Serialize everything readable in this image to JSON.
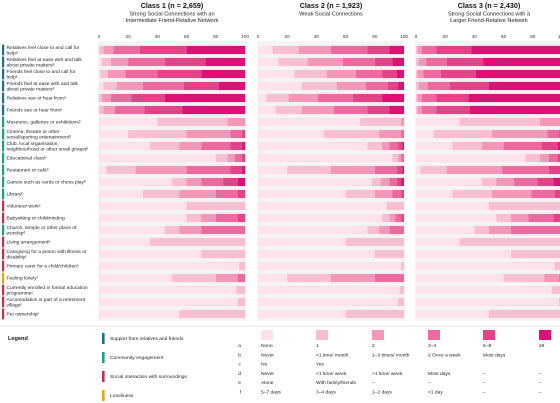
{
  "chart_data": {
    "type": "bar",
    "stacked": true,
    "orientation": "horizontal",
    "xlim": [
      0,
      100
    ],
    "xticks": [
      "0",
      "20",
      "40",
      "60",
      "80",
      "100"
    ],
    "categories": [
      {
        "label": "Relatives feel close to and call for helpᵃ",
        "group": "Support from relatives and friends",
        "scale": "a"
      },
      {
        "label": "Relatives feel at ease with and talk about private mattersᵃ",
        "group": "Support from relatives and friends",
        "scale": "a"
      },
      {
        "label": "Friends feel close to and call for helpᵃ",
        "group": "Support from relatives and friends",
        "scale": "a"
      },
      {
        "label": "Friends feel at ease with and talk about private mattersᵃ",
        "group": "Support from relatives and friends",
        "scale": "a"
      },
      {
        "label": "Relatives see or hear fromᵃ",
        "group": "Support from relatives and friends",
        "scale": "a"
      },
      {
        "label": "Friends see or hear fromᵃ",
        "group": "Support from relatives and friends",
        "scale": "a"
      },
      {
        "label": "Museums, galleries or exhibitionsᵇ",
        "group": "Community engagement",
        "scale": "b"
      },
      {
        "label": "Cinema, theatre or other social/sporting entertainmentᵇ",
        "group": "Community engagement",
        "scale": "b"
      },
      {
        "label": "Club, local organisation, neighbourhood or other small groupsᵇ",
        "group": "Community engagement",
        "scale": "b"
      },
      {
        "label": "Educational classᵇ",
        "group": "Community engagement",
        "scale": "b"
      },
      {
        "label": "Restaurant or caféᵇ",
        "group": "Community engagement",
        "scale": "b"
      },
      {
        "label": "Games such as cards or chess playᵇ",
        "group": "Community engagement",
        "scale": "b"
      },
      {
        "label": "Libraryᵇ",
        "group": "Community engagement",
        "scale": "b"
      },
      {
        "label": "Volunteer workᶜ",
        "group": "Social interaction with surroundings",
        "scale": "c"
      },
      {
        "label": "Babysitting or childminding",
        "group": "Social interaction with surroundings",
        "scale": "d"
      },
      {
        "label": "Church, temple or other place of worshipᵈ",
        "group": "Community engagement",
        "scale": "d"
      },
      {
        "label": "Living arrangementᵉ",
        "group": "Social interaction with surroundings",
        "scale": "e"
      },
      {
        "label": "Caregiving for a peson with illness or disabilityᶜ",
        "group": "Social interaction with surroundings",
        "scale": "c"
      },
      {
        "label": "Primary carer for a child/childrenᶜ",
        "group": "Social interaction with surroundings",
        "scale": "c"
      },
      {
        "label": "Feeling lonelyᶠ",
        "group": "Loneliness",
        "scale": "f"
      },
      {
        "label": "Currently enrolled in formal education programmeᶜ",
        "group": "Social interaction with surroundings",
        "scale": "c"
      },
      {
        "label": "Accomodation is part of a retirement villageᶜ",
        "group": "Social interaction with surroundings",
        "scale": "c"
      },
      {
        "label": "Pet ownershipᶜ",
        "group": "Social interaction with surroundings",
        "scale": "c"
      }
    ],
    "panels": [
      {
        "title": "Class 1 (n = 2,659)",
        "subtitle_lines": [
          "Strong Social Connections with an",
          "Intermediate Friend-Relative Network"
        ],
        "rows": [
          [
            0,
            3,
            7,
            18,
            32,
            40
          ],
          [
            2,
            6,
            12,
            25,
            28,
            27
          ],
          [
            1,
            5,
            12,
            22,
            30,
            30
          ],
          [
            3,
            9,
            18,
            28,
            24,
            18
          ],
          [
            0,
            2,
            6,
            14,
            23,
            55
          ],
          [
            0,
            3,
            8,
            20,
            26,
            43
          ],
          [
            40,
            48,
            12,
            0,
            0,
            0
          ],
          [
            20,
            40,
            30,
            8,
            2,
            0
          ],
          [
            35,
            20,
            15,
            20,
            8,
            2
          ],
          [
            80,
            8,
            5,
            5,
            2,
            0
          ],
          [
            5,
            20,
            35,
            30,
            8,
            2
          ],
          [
            50,
            10,
            10,
            15,
            10,
            5
          ],
          [
            30,
            25,
            25,
            15,
            5,
            0
          ],
          [
            60,
            40
          ],
          [
            60,
            10,
            10,
            15,
            5
          ],
          [
            45,
            10,
            15,
            30
          ],
          [
            35,
            65
          ],
          [
            70,
            30
          ],
          [
            96,
            4
          ],
          [
            50,
            30,
            15,
            5
          ],
          [
            94,
            6
          ],
          [
            95,
            5
          ],
          [
            55,
            45
          ]
        ]
      },
      {
        "title": "Class 2 (n = 1,923)",
        "subtitle_lines": [
          "Weak Social Connections"
        ],
        "rows": [
          [
            10,
            18,
            22,
            25,
            15,
            10
          ],
          [
            14,
            20,
            24,
            22,
            12,
            8
          ],
          [
            25,
            22,
            20,
            18,
            10,
            5
          ],
          [
            30,
            24,
            20,
            15,
            7,
            4
          ],
          [
            6,
            15,
            20,
            24,
            20,
            15
          ],
          [
            12,
            18,
            22,
            23,
            15,
            10
          ],
          [
            70,
            28,
            2,
            0,
            0,
            0
          ],
          [
            45,
            38,
            15,
            2,
            0,
            0
          ],
          [
            75,
            10,
            5,
            6,
            3,
            1
          ],
          [
            92,
            4,
            2,
            2,
            0,
            0
          ],
          [
            20,
            30,
            30,
            15,
            4,
            1
          ],
          [
            78,
            6,
            6,
            5,
            3,
            2
          ],
          [
            60,
            20,
            12,
            6,
            2,
            0
          ],
          [
            88,
            12
          ],
          [
            85,
            5,
            4,
            4,
            2
          ],
          [
            75,
            8,
            7,
            10
          ],
          [
            60,
            40
          ],
          [
            80,
            20
          ],
          [
            98,
            2
          ],
          [
            20,
            30,
            30,
            20
          ],
          [
            97,
            3
          ],
          [
            96,
            4
          ],
          [
            60,
            40
          ]
        ]
      },
      {
        "title": "Class 3 (n = 2,430)",
        "subtitle_lines": [
          "Strong Social Connections with a",
          "Larger Friend-Relative Network"
        ],
        "rows": [
          [
            0,
            1,
            3,
            10,
            24,
            62
          ],
          [
            0,
            2,
            5,
            14,
            25,
            54
          ],
          [
            0,
            1,
            4,
            12,
            24,
            59
          ],
          [
            0,
            2,
            6,
            15,
            27,
            50
          ],
          [
            0,
            1,
            3,
            10,
            22,
            64
          ],
          [
            0,
            1,
            3,
            10,
            23,
            63
          ],
          [
            30,
            55,
            15,
            0,
            0,
            0
          ],
          [
            12,
            40,
            38,
            8,
            2,
            0
          ],
          [
            25,
            20,
            15,
            26,
            11,
            3
          ],
          [
            75,
            10,
            6,
            6,
            3,
            0
          ],
          [
            3,
            18,
            38,
            32,
            8,
            1
          ],
          [
            45,
            10,
            12,
            16,
            11,
            6
          ],
          [
            25,
            27,
            27,
            16,
            5,
            0
          ],
          [
            50,
            50
          ],
          [
            55,
            10,
            12,
            17,
            6
          ],
          [
            40,
            10,
            15,
            35
          ],
          [
            30,
            70
          ],
          [
            65,
            35
          ],
          [
            95,
            5
          ],
          [
            60,
            28,
            10,
            2
          ],
          [
            93,
            7
          ],
          [
            98,
            2
          ],
          [
            50,
            50
          ]
        ]
      }
    ],
    "legend": {
      "title": "Legend",
      "groups": [
        {
          "label": "Support from relatives and friends",
          "color": "#1a6f8a"
        },
        {
          "label": "Community engagement",
          "color": "#1f9b8a"
        },
        {
          "label": "Social interaction with surroundings",
          "color": "#c4304a"
        },
        {
          "label": "Loneliness",
          "color": "#e8a317"
        }
      ],
      "swatch_colors": [
        "#fde2ec",
        "#f8bfd2",
        "#f398b8",
        "#ec6aa0",
        "#e34387",
        "#db1177"
      ],
      "rows": [
        {
          "key": "a",
          "values": [
            "None",
            "1",
            "2",
            "3–4",
            "5–8",
            "≥9"
          ]
        },
        {
          "key": "b",
          "values": [
            "Never",
            "<1 time/ month",
            "1–3 times/ month",
            "≥ Once a week",
            "Most days",
            ""
          ]
        },
        {
          "key": "c",
          "values": [
            "No",
            "Yes",
            "",
            "",
            "",
            ""
          ]
        },
        {
          "key": "d",
          "values": [
            "Never",
            "<1 time/ week",
            ">1 time/ week",
            "Most days",
            "–",
            "–"
          ]
        },
        {
          "key": "e",
          "values": [
            "Alone",
            "With family/friends",
            "–",
            "–",
            "–",
            "–"
          ]
        },
        {
          "key": "f",
          "values": [
            "5–7 days",
            "3–4 days",
            "1–2 days",
            "<1 day",
            "–",
            "–"
          ]
        }
      ]
    }
  }
}
